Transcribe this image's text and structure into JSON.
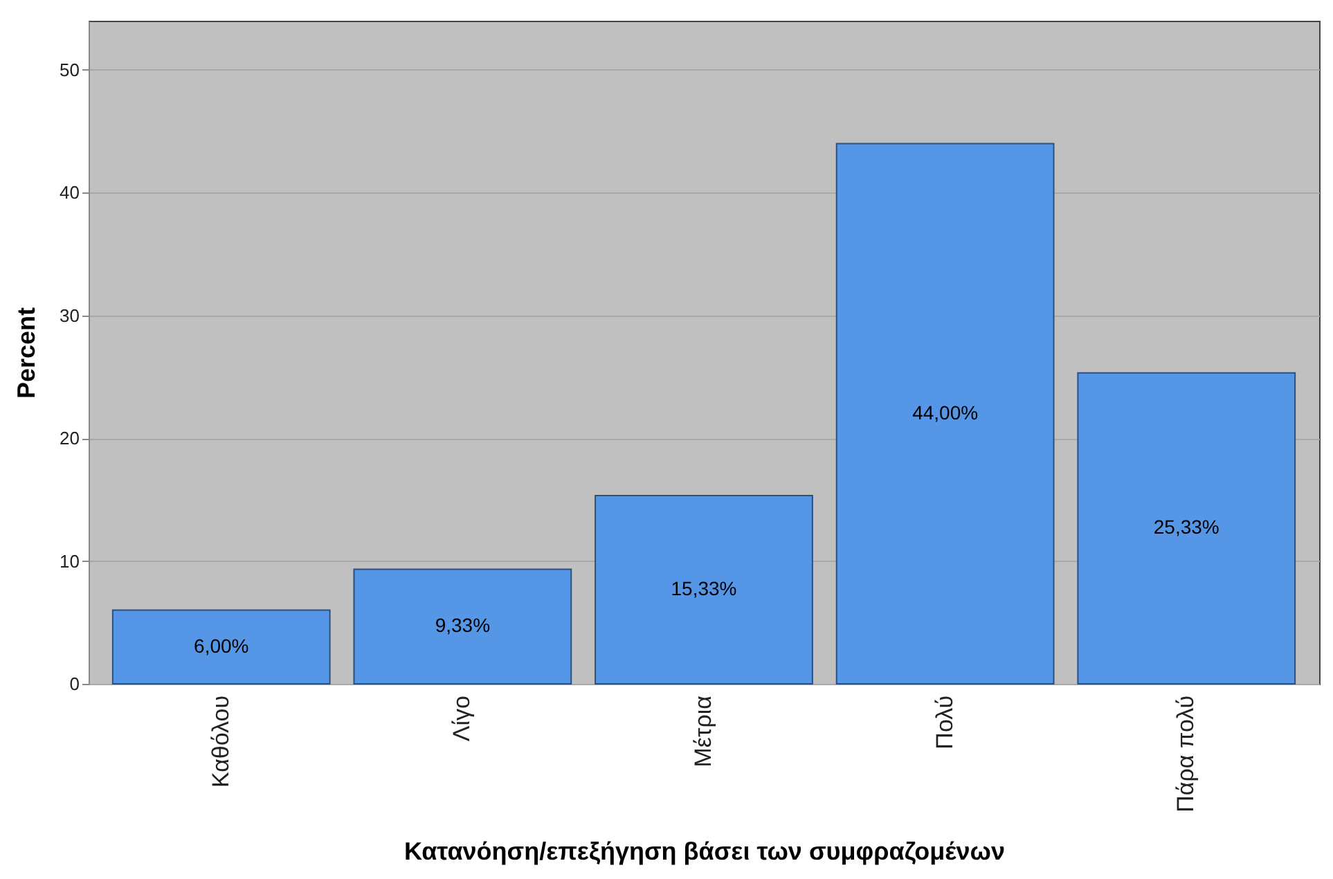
{
  "chart_data": {
    "type": "bar",
    "xlabel": "Κατανόηση/επεξήγηση βάσει των συμφραζομένων",
    "ylabel": "Percent",
    "categories": [
      "Καθόλου",
      "Λίγο",
      "Μέτρια",
      "Πολύ",
      "Πάρα πολύ"
    ],
    "values": [
      6.0,
      9.33,
      15.33,
      44.0,
      25.33
    ],
    "value_labels": [
      "6,00%",
      "9,33%",
      "15,33%",
      "44,00%",
      "25,33%"
    ],
    "color": "#5596e6",
    "ylim": [
      0,
      54
    ],
    "yticks": [
      0,
      10,
      20,
      30,
      40,
      50
    ],
    "grid": "y"
  }
}
